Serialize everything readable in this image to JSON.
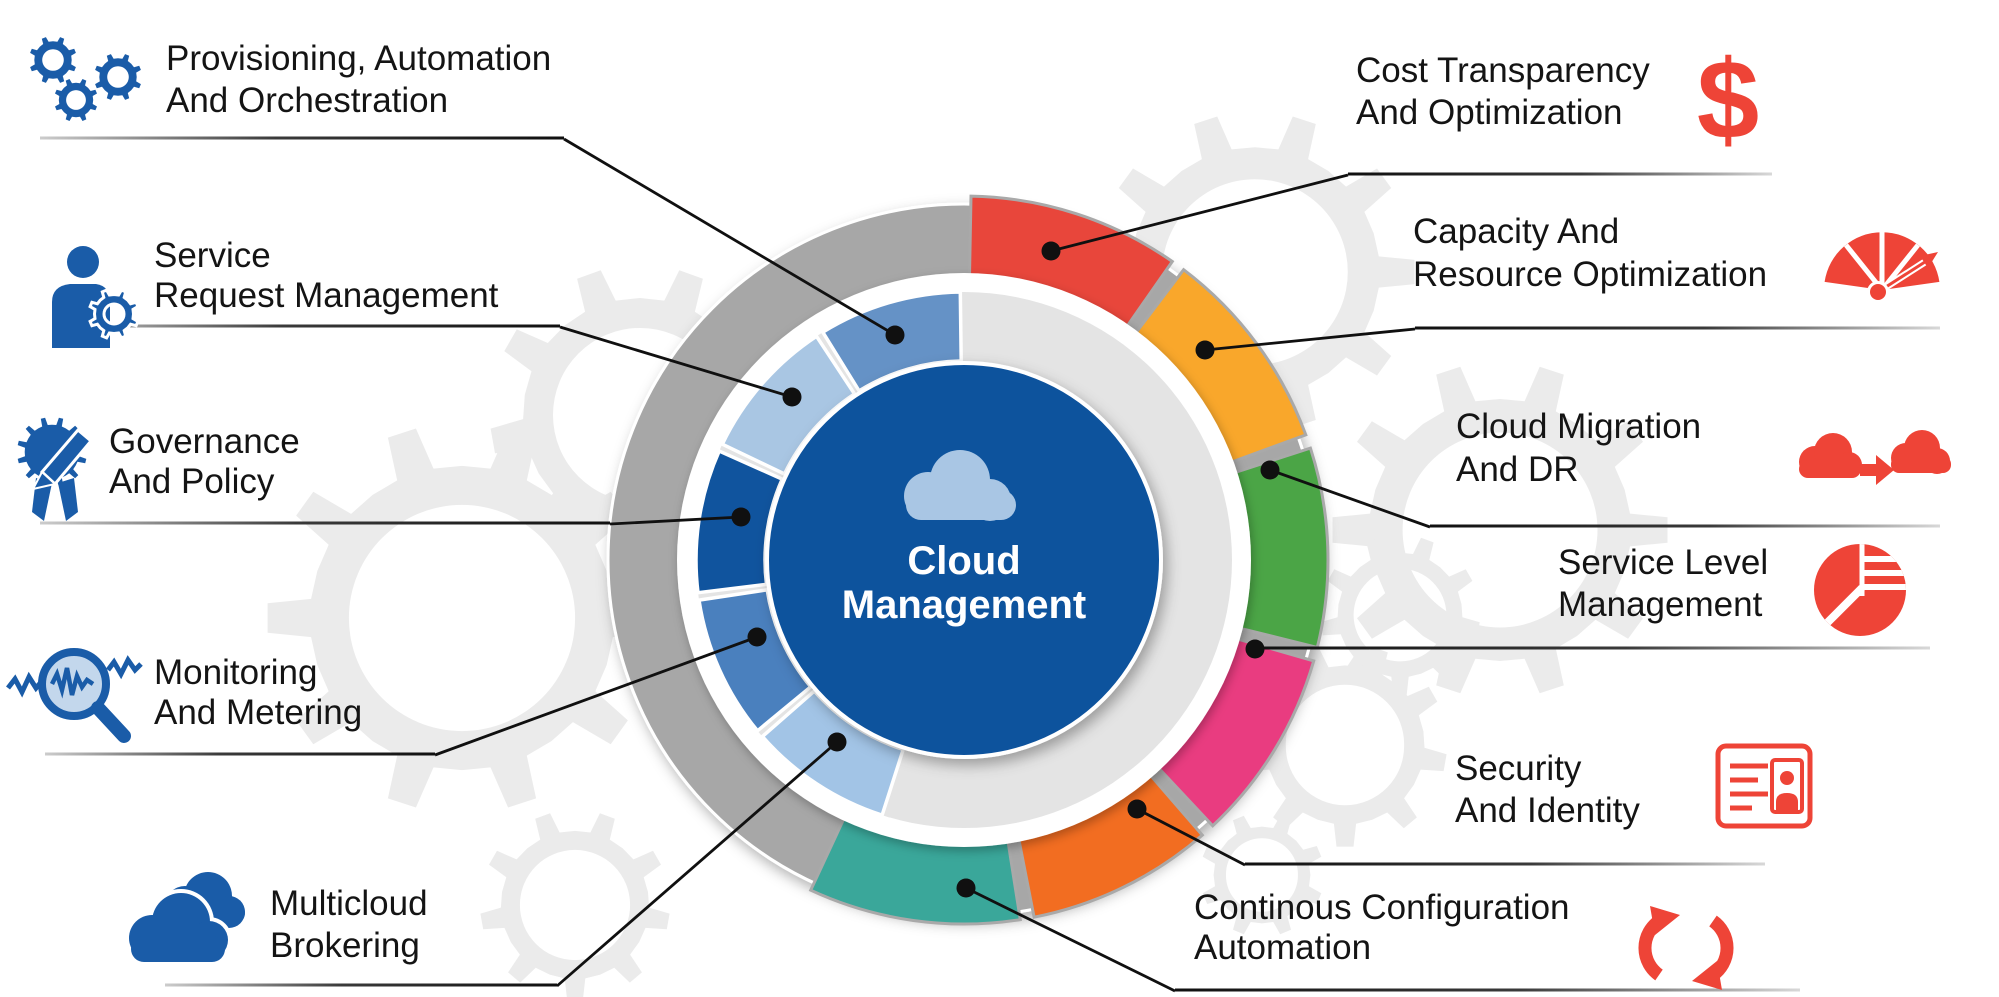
{
  "diagram_title": "Cloud Management",
  "center": {
    "icon": "cloud-icon",
    "title_line1": "Cloud",
    "title_line2": "Management"
  },
  "wheel": {
    "outer_ring_color": "#A7A7A7",
    "inner_ring_color": "#E4E4E4",
    "center_color": "#0F529D",
    "cloud_icon_color": "#A9C6E4",
    "separator_color": "#FFFFFF",
    "outer_segments": [
      {
        "name": "cost-transparency-segment",
        "color": "#E8463B"
      },
      {
        "name": "capacity-resource-segment",
        "color": "#F9A72B"
      },
      {
        "name": "cloud-migration-segment",
        "color": "#4BA546"
      },
      {
        "name": "service-level-segment",
        "color": "#E93C80"
      },
      {
        "name": "security-identity-segment",
        "color": "#F26D21"
      },
      {
        "name": "configuration-automation-segment",
        "color": "#3AA79A"
      }
    ],
    "inner_segments": [
      {
        "name": "provisioning-segment",
        "color": "#6592C6"
      },
      {
        "name": "service-request-segment",
        "color": "#A9C6E3"
      },
      {
        "name": "governance-segment",
        "color": "#10549E"
      },
      {
        "name": "monitoring-segment",
        "color": "#4A80BE"
      },
      {
        "name": "multicloud-segment",
        "color": "#A2C4E6"
      }
    ]
  },
  "left_items": [
    {
      "line1": "Provisioning, Automation",
      "line2": "And Orchestration",
      "icon": "gears-icon"
    },
    {
      "line1": "Service",
      "line2": "Request Management",
      "icon": "service-request-icon"
    },
    {
      "line1": "Governance",
      "line2": "And Policy",
      "icon": "governance-badge-icon"
    },
    {
      "line1": "Monitoring",
      "line2": "And Metering",
      "icon": "monitoring-magnifier-icon"
    },
    {
      "line1": "Multicloud",
      "line2": "Brokering",
      "icon": "multicloud-clouds-icon"
    }
  ],
  "right_items": [
    {
      "line1": "Cost Transparency",
      "line2": "And Optimization",
      "icon": "dollar-icon",
      "icon_glyph": "$"
    },
    {
      "line1": "Capacity And",
      "line2": "Resource Optimization",
      "icon": "gauge-icon"
    },
    {
      "line1": "Cloud Migration",
      "line2": "And DR",
      "icon": "cloud-transfer-icon"
    },
    {
      "line1": "Service Level",
      "line2": "Management",
      "icon": "pie-chart-icon"
    },
    {
      "line1": "Security",
      "line2": "And Identity",
      "icon": "id-card-icon"
    },
    {
      "line1": "Continous Configuration",
      "line2": "Automation",
      "icon": "refresh-icon"
    }
  ],
  "accent_colors": {
    "left_icons": "#1A5CA8",
    "right_icons": "#EE4437",
    "connector": "#101010",
    "label_text": "#141414",
    "background_gears": "#EBEBEB"
  }
}
